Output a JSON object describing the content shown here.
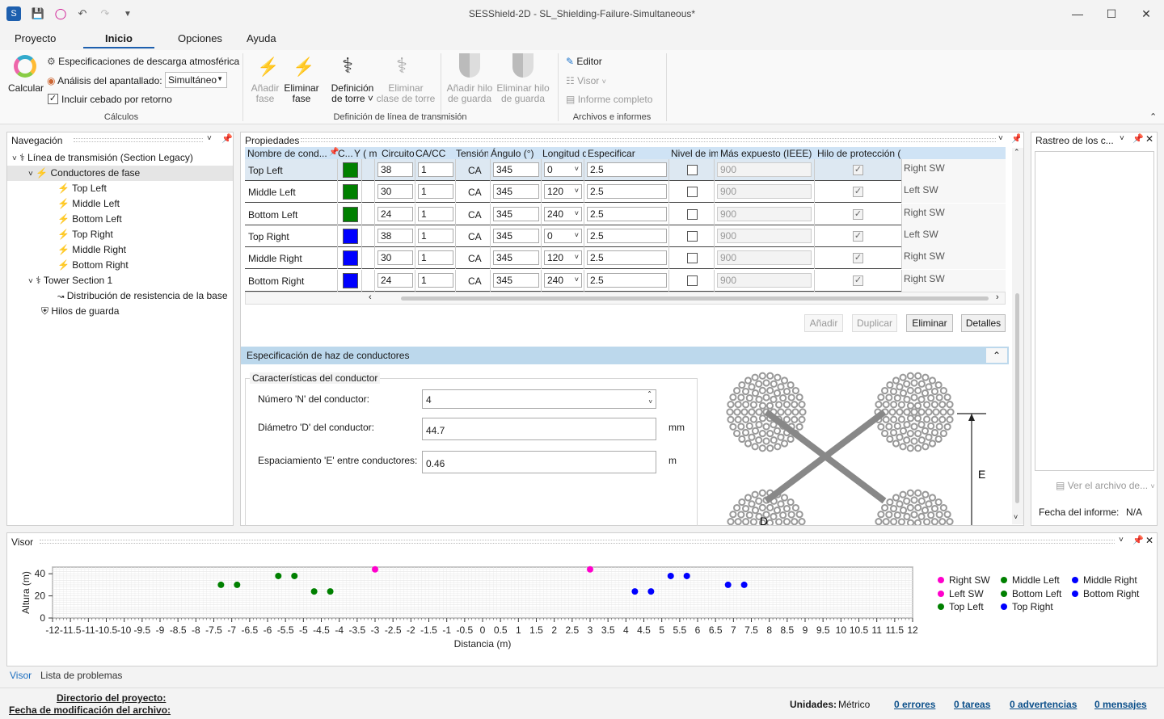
{
  "window": {
    "title": "SESShield-2D - SL_Shielding-Failure-Simultaneous*"
  },
  "menu": [
    "Proyecto",
    "Inicio",
    "Opciones",
    "Ayuda"
  ],
  "ribbon": {
    "calc_label": "Calcular",
    "spec_label": "Especificaciones de descarga atmosférica",
    "analysis_label": "Análisis del apantallado:",
    "analysis_value": "Simultáneo",
    "backflash_label": "Incluir cebado por retorno",
    "group_calc": "Cálculos",
    "add_phase": [
      "Añadir",
      "fase"
    ],
    "del_phase": [
      "Eliminar",
      "fase"
    ],
    "tower_def": [
      "Definición",
      "de torre"
    ],
    "tower_del": [
      "Eliminar",
      "clase de torre"
    ],
    "add_guard": [
      "Añadir hilo",
      "de guarda"
    ],
    "del_guard": [
      "Eliminar hilo",
      "de guarda"
    ],
    "group_line": "Definición de línea de transmisión",
    "editor": "Editor",
    "viewer": "Visor",
    "report": "Informe completo",
    "group_files": "Archivos e informes"
  },
  "nav": {
    "title": "Navegación",
    "items": [
      {
        "label": "Línea de transmisión (Section Legacy)",
        "level": 0
      },
      {
        "label": "Conductores de fase",
        "level": 1
      },
      {
        "label": "Top Left",
        "level": 2
      },
      {
        "label": "Middle Left",
        "level": 2
      },
      {
        "label": "Bottom Left",
        "level": 2
      },
      {
        "label": "Top Right",
        "level": 2
      },
      {
        "label": "Middle Right",
        "level": 2
      },
      {
        "label": "Bottom Right",
        "level": 2
      },
      {
        "label": "Tower Section 1",
        "level": 1
      },
      {
        "label": "Distribución de resistencia de la base",
        "level": 2
      },
      {
        "label": "Hilos de guarda",
        "level": 1
      }
    ]
  },
  "props": {
    "title": "Propiedades",
    "headers": [
      "Nombre de cond...",
      "C...",
      "Y ( m )",
      "Circuito",
      "CA/CC",
      "Tensión (kV)",
      "Ángulo (°)",
      "Longitud del aislante",
      "Especificar",
      "Nivel de impulso (kV)",
      "Más expuesto (IEEE)",
      "Hilo de protección (IEEE)"
    ],
    "rows": [
      {
        "name": "Top Left",
        "color": "#008000",
        "y": "38",
        "circuit": "1",
        "acdc": "CA",
        "voltage": "345",
        "angle": "0",
        "insul": "2.5",
        "impulse": "900",
        "guard": "Right SW"
      },
      {
        "name": "Middle Left",
        "color": "#008000",
        "y": "30",
        "circuit": "1",
        "acdc": "CA",
        "voltage": "345",
        "angle": "120",
        "insul": "2.5",
        "impulse": "900",
        "guard": "Left SW"
      },
      {
        "name": "Bottom Left",
        "color": "#008000",
        "y": "24",
        "circuit": "1",
        "acdc": "CA",
        "voltage": "345",
        "angle": "240",
        "insul": "2.5",
        "impulse": "900",
        "guard": "Right SW"
      },
      {
        "name": "Top Right",
        "color": "#0000ff",
        "y": "38",
        "circuit": "1",
        "acdc": "CA",
        "voltage": "345",
        "angle": "0",
        "insul": "2.5",
        "impulse": "900",
        "guard": "Left SW"
      },
      {
        "name": "Middle Right",
        "color": "#0000ff",
        "y": "30",
        "circuit": "1",
        "acdc": "CA",
        "voltage": "345",
        "angle": "120",
        "insul": "2.5",
        "impulse": "900",
        "guard": "Right SW"
      },
      {
        "name": "Bottom Right",
        "color": "#0000ff",
        "y": "24",
        "circuit": "1",
        "acdc": "CA",
        "voltage": "345",
        "angle": "240",
        "insul": "2.5",
        "impulse": "900",
        "guard": "Right SW"
      }
    ],
    "buttons": {
      "add": "Añadir",
      "dup": "Duplicar",
      "del": "Eliminar",
      "details": "Detalles"
    }
  },
  "bundle": {
    "section_title": "Especificación de haz de conductores",
    "group_title": "Características del conductor",
    "n_label": "Número 'N' del conductor:",
    "n_value": "4",
    "d_label": "Diámetro 'D' del conductor:",
    "d_value": "44.7",
    "d_unit": "mm",
    "e_label": "Espaciamiento 'E' entre conductores:",
    "e_value": "0.46",
    "e_unit": "m",
    "diagram_e": "E",
    "diagram_d": "D"
  },
  "trace": {
    "title": "Rastreo de los c...",
    "file_btn": "Ver el archivo de...",
    "date_label": "Fecha del informe:",
    "date_value": "N/A"
  },
  "viewer": {
    "title": "Visor"
  },
  "chart_data": {
    "type": "scatter",
    "xlabel": "Distancia (m)",
    "ylabel": "Altura (m)",
    "xlim": [
      -12,
      12
    ],
    "ylim": [
      0,
      40
    ],
    "xticks": [
      "-12",
      "-11.5",
      "-11",
      "-10.5",
      "-10",
      "-9.5",
      "-9",
      "-8.5",
      "-8",
      "-7.5",
      "-7",
      "-6.5",
      "-6",
      "-5.5",
      "-5",
      "-4.5",
      "-4",
      "-3.5",
      "-3",
      "-2.5",
      "-2",
      "-1.5",
      "-1",
      "-0.5",
      "0",
      "0.5",
      "1",
      "1.5",
      "2",
      "2.5",
      "3",
      "3.5",
      "4",
      "4.5",
      "5",
      "5.5",
      "6",
      "6.5",
      "7",
      "7.5",
      "8",
      "8.5",
      "9",
      "9.5",
      "10",
      "10.5",
      "11",
      "11.5",
      "12"
    ],
    "yticks": [
      "0",
      "20",
      "40"
    ],
    "series": [
      {
        "name": "Right SW",
        "color": "#ff00cc",
        "points": [
          [
            3,
            44
          ]
        ]
      },
      {
        "name": "Left SW",
        "color": "#ff00cc",
        "points": [
          [
            -3,
            44
          ]
        ]
      },
      {
        "name": "Top Left",
        "color": "#008000",
        "points": [
          [
            -5.7,
            38
          ],
          [
            -5.25,
            38
          ]
        ]
      },
      {
        "name": "Middle Left",
        "color": "#008000",
        "points": [
          [
            -7.3,
            30
          ],
          [
            -6.85,
            30
          ]
        ]
      },
      {
        "name": "Bottom Left",
        "color": "#008000",
        "points": [
          [
            -4.7,
            24
          ],
          [
            -4.25,
            24
          ]
        ]
      },
      {
        "name": "Top Right",
        "color": "#0000ff",
        "points": [
          [
            5.25,
            38
          ],
          [
            5.7,
            38
          ]
        ]
      },
      {
        "name": "Middle Right",
        "color": "#0000ff",
        "points": [
          [
            6.85,
            30
          ],
          [
            7.3,
            30
          ]
        ]
      },
      {
        "name": "Bottom Right",
        "color": "#0000ff",
        "points": [
          [
            4.25,
            24
          ],
          [
            4.7,
            24
          ]
        ]
      }
    ]
  },
  "bottom_tabs": [
    "Visor",
    "Lista de problemas"
  ],
  "status": {
    "dir_label": "Directorio del proyecto:",
    "mod_label": "Fecha de modificación del archivo:",
    "units_label": "Unidades:",
    "units_value": "Métrico",
    "errors": "0 errores",
    "tasks": "0 tareas",
    "warnings": "0 advertencias",
    "messages": "0 mensajes"
  }
}
